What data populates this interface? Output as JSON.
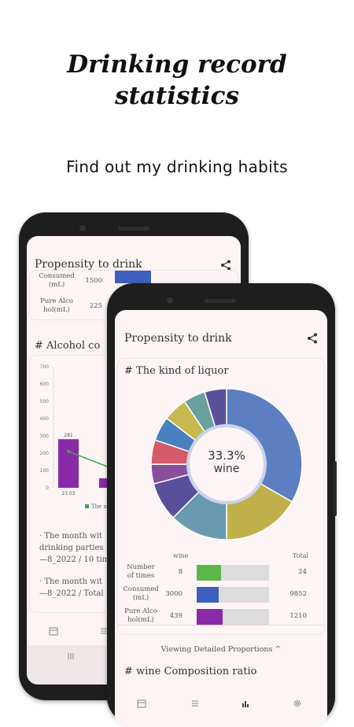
{
  "headline": {
    "line1": "Drinking record",
    "line2": "statistics"
  },
  "subline": "Find out my drinking habits",
  "back_screen": {
    "title": "Propensity to drink",
    "rows": [
      {
        "label1": "Consumed",
        "label2": "(mL)",
        "value": "1500"
      },
      {
        "label1": "Pure Alco",
        "label2": "hol(mL)",
        "value": "225"
      }
    ],
    "section_title": "# Alcohol co",
    "chart_data": {
      "type": "bar",
      "yticks": [
        "700",
        "600",
        "500",
        "400",
        "300",
        "200",
        "100",
        "0"
      ],
      "bar_label": "281",
      "bar_value": 281,
      "x_label": "23.03",
      "legend": "The nu",
      "ylim": [
        0,
        700
      ]
    },
    "notes": [
      {
        "line1": "· The month wit",
        "line2": "drinking parties",
        "line3": "—8_2022 / 10 tim"
      },
      {
        "line1": "· The month wit",
        "line2": "—8_2022 / Total"
      }
    ]
  },
  "front_screen": {
    "title": "Propensity to drink",
    "section_title": "# The kind of liquor",
    "center_percent": "33.3%",
    "center_label": "wine",
    "chart_data": {
      "type": "pie",
      "slices": [
        {
          "color": "#5b7fc0",
          "value": 33.3
        },
        {
          "color": "#bfb04a",
          "value": 16.7
        },
        {
          "color": "#6a9ab0",
          "value": 12.5
        },
        {
          "color": "#5a4f9a",
          "value": 8.3
        },
        {
          "color": "#8a4f9a",
          "value": 4.2
        },
        {
          "color": "#d45a6a",
          "value": 5.2
        },
        {
          "color": "#4a7fc0",
          "value": 5.2
        },
        {
          "color": "#c8b850",
          "value": 5.2
        },
        {
          "color": "#6aa0a0",
          "value": 4.7
        },
        {
          "color": "#5a509a",
          "value": 4.7
        }
      ]
    },
    "table": {
      "col_wine": "wine",
      "col_total": "Total",
      "rows": [
        {
          "label1": "Number",
          "label2": "of times",
          "value": "8",
          "total": "24",
          "color": "#5bb848",
          "frac": 0.333
        },
        {
          "label1": "Consumed",
          "label2": "(mL)",
          "value": "3000",
          "total": "9852",
          "color": "#3f5fc0",
          "frac": 0.305
        },
        {
          "label1": "Pure Alco",
          "label2": "hol(mL)",
          "value": "439",
          "total": "1210",
          "color": "#8a2aa8",
          "frac": 0.363
        }
      ]
    },
    "detail_link": "Viewing Detailed Proportions ^",
    "section2_title": "# wine Composition ratio"
  }
}
